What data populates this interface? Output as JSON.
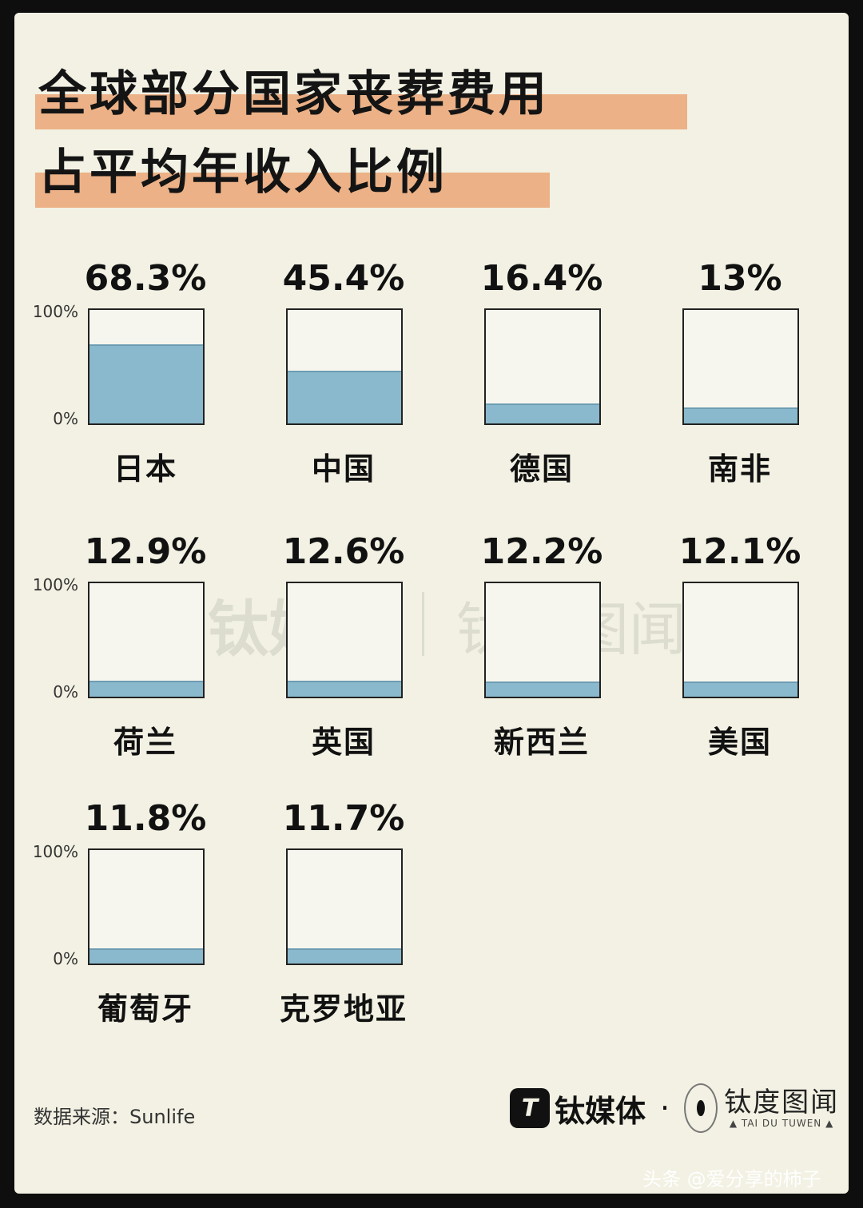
{
  "title_line1": "全球部分国家丧葬费用",
  "title_line2": "占平均年收入比例",
  "axis": {
    "top": "100%",
    "bottom": "0%"
  },
  "chart_data": {
    "type": "bar",
    "title": "全球部分国家丧葬费用占平均年收入比例",
    "ylim": [
      0,
      100
    ],
    "categories": [
      "日本",
      "中国",
      "德国",
      "南非",
      "荷兰",
      "英国",
      "新西兰",
      "美国",
      "葡萄牙",
      "克罗地亚"
    ],
    "value_labels": [
      "68.3%",
      "45.4%",
      "16.4%",
      "13%",
      "12.9%",
      "12.6%",
      "12.2%",
      "12.1%",
      "11.8%",
      "11.7%"
    ],
    "values": [
      68.3,
      45.4,
      16.4,
      13,
      12.9,
      12.6,
      12.2,
      12.1,
      11.8,
      11.7
    ],
    "fill_color": "#8ab8cc"
  },
  "source": "数据来源：Sunlife",
  "brand": {
    "logo_letter": "T",
    "name": "钛媒体",
    "dot": "·",
    "partner": "钛度图闻",
    "partner_en": "▲ TAI DU TUWEN ▲"
  },
  "footer": "头条 @爱分享的柿子"
}
